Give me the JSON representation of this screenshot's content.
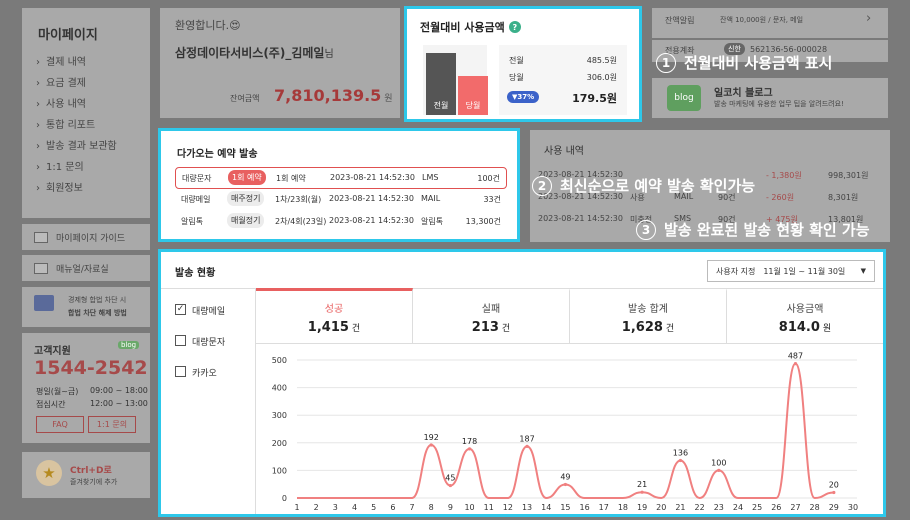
{
  "sidebar": {
    "title": "마이페이지",
    "items": [
      "결제 내역",
      "요금 결제",
      "사용 내역",
      "통합 리포트",
      "발송 결과 보관함",
      "1:1 문의",
      "회원정보"
    ],
    "guide": "마이페이지 가이드",
    "manual": "매뉴얼/자료실",
    "block_line1": "경제형 합법 차단 시",
    "block_line2": "합법 차단 해제 방법",
    "support_title": "고객지원",
    "blog_badge": "blog",
    "phone": "1544-2542",
    "hours_weekday_label": "평일(월~금)",
    "hours_weekday": "09:00 ~ 18:00",
    "hours_lunch_label": "점심시간",
    "hours_lunch": "12:00 ~ 13:00",
    "faq": "FAQ",
    "inquiry": "1:1 문의",
    "bookmark_line1": "Ctrl+D로",
    "bookmark_line2": "즐겨찾기에 추가"
  },
  "welcome": {
    "greeting": "환영합니다.😍",
    "company": "삼정데이타서비스(주)_김메일",
    "suffix": "님",
    "balance_label": "잔여금액",
    "balance": "7,810,139.5",
    "balance_unit": "원"
  },
  "compare": {
    "title": "전월대비 사용금액",
    "help": "?",
    "bar_prev_label": "전월",
    "bar_curr_label": "당월",
    "prev_fraction": 1.0,
    "curr_fraction": 0.63,
    "rows": [
      {
        "label": "전월",
        "value": "485.5원"
      },
      {
        "label": "당월",
        "value": "306.0원"
      }
    ],
    "change": "▼37%",
    "diff": "179.5원"
  },
  "right": {
    "alarm_label": "잔액알림",
    "alarm_value": "잔액 10,000원 / 문자, 메일",
    "account_label": "전용계좌",
    "bank": "신한",
    "account": "562136-56-000028",
    "blog_badge": "blog",
    "blog_title": "일코치 블로그",
    "blog_desc": "발송 마케팅에 유용한 업무 팁을 알려드려요!"
  },
  "upcoming": {
    "title": "다가오는 예약 발송",
    "rows": [
      {
        "kind": "대량문자",
        "tag": "1회 예약",
        "schedule": "1회 예약",
        "datetime": "2023-08-21 14:52:30",
        "channel": "LMS",
        "count": "100건"
      },
      {
        "kind": "대량메일",
        "tag": "매주정기",
        "schedule": "1차/23회(월)",
        "datetime": "2023-08-21 14:52:30",
        "channel": "MAIL",
        "count": "33건"
      },
      {
        "kind": "알림톡",
        "tag": "매월정기",
        "schedule": "2차/4회(23일)",
        "datetime": "2023-08-21 14:52:30",
        "channel": "알림톡",
        "count": "13,300건"
      }
    ]
  },
  "usage": {
    "title": "사용 내역",
    "rows": [
      {
        "date": "2023-08-21 14:52:30",
        "kind": "",
        "channel": "",
        "count": "",
        "amount": "- 1,380원",
        "balance": "998,301원"
      },
      {
        "date": "2023-08-21 14:52:30",
        "kind": "사용",
        "channel": "MAIL",
        "count": "90건",
        "amount": "- 260원",
        "balance": "8,301원"
      },
      {
        "date": "2023-08-21 14:52:30",
        "kind": "미충전",
        "channel": "SMS",
        "count": "90건",
        "amount": "+ 475원",
        "balance": "13,801원"
      }
    ]
  },
  "callouts": [
    {
      "num": "1",
      "text": "전월대비 사용금액 표시"
    },
    {
      "num": "2",
      "text": "최신순으로 예약 발송 확인가능"
    },
    {
      "num": "3",
      "text": "발송 완료된 발송 현황 확인 가능"
    }
  ],
  "status": {
    "title": "발송 현황",
    "period_label": "사용자 지정",
    "period_value": "11월 1일 ~ 11월 30일",
    "filters": [
      {
        "label": "대량메일",
        "checked": true
      },
      {
        "label": "대량문자",
        "checked": false
      },
      {
        "label": "카카오",
        "checked": false
      }
    ],
    "stats": [
      {
        "label": "성공",
        "value": "1,415",
        "unit": "건",
        "active": true
      },
      {
        "label": "실패",
        "value": "213",
        "unit": "건",
        "active": false
      },
      {
        "label": "발송 합계",
        "value": "1,628",
        "unit": "건",
        "active": false
      },
      {
        "label": "사용금액",
        "value": "814.0",
        "unit": "원",
        "active": false
      }
    ]
  },
  "chart_data": {
    "type": "line",
    "x": [
      1,
      2,
      3,
      4,
      5,
      6,
      7,
      8,
      9,
      10,
      11,
      12,
      13,
      14,
      15,
      16,
      17,
      18,
      19,
      20,
      21,
      22,
      23,
      24,
      25,
      26,
      27,
      28,
      29,
      30
    ],
    "series": [
      {
        "values": [
          0,
          0,
          0,
          0,
          0,
          0,
          0,
          192,
          45,
          178,
          0,
          0,
          187,
          0,
          49,
          0,
          0,
          0,
          21,
          0,
          136,
          0,
          100,
          0,
          0,
          0,
          487,
          0,
          20,
          null
        ]
      }
    ],
    "yticks": [
      0,
      100,
      200,
      300,
      400,
      500
    ],
    "ylim": [
      0,
      500
    ],
    "labeled_points": [
      192,
      45,
      178,
      187,
      49,
      21,
      136,
      100,
      487,
      20
    ],
    "color": "#f08080"
  }
}
